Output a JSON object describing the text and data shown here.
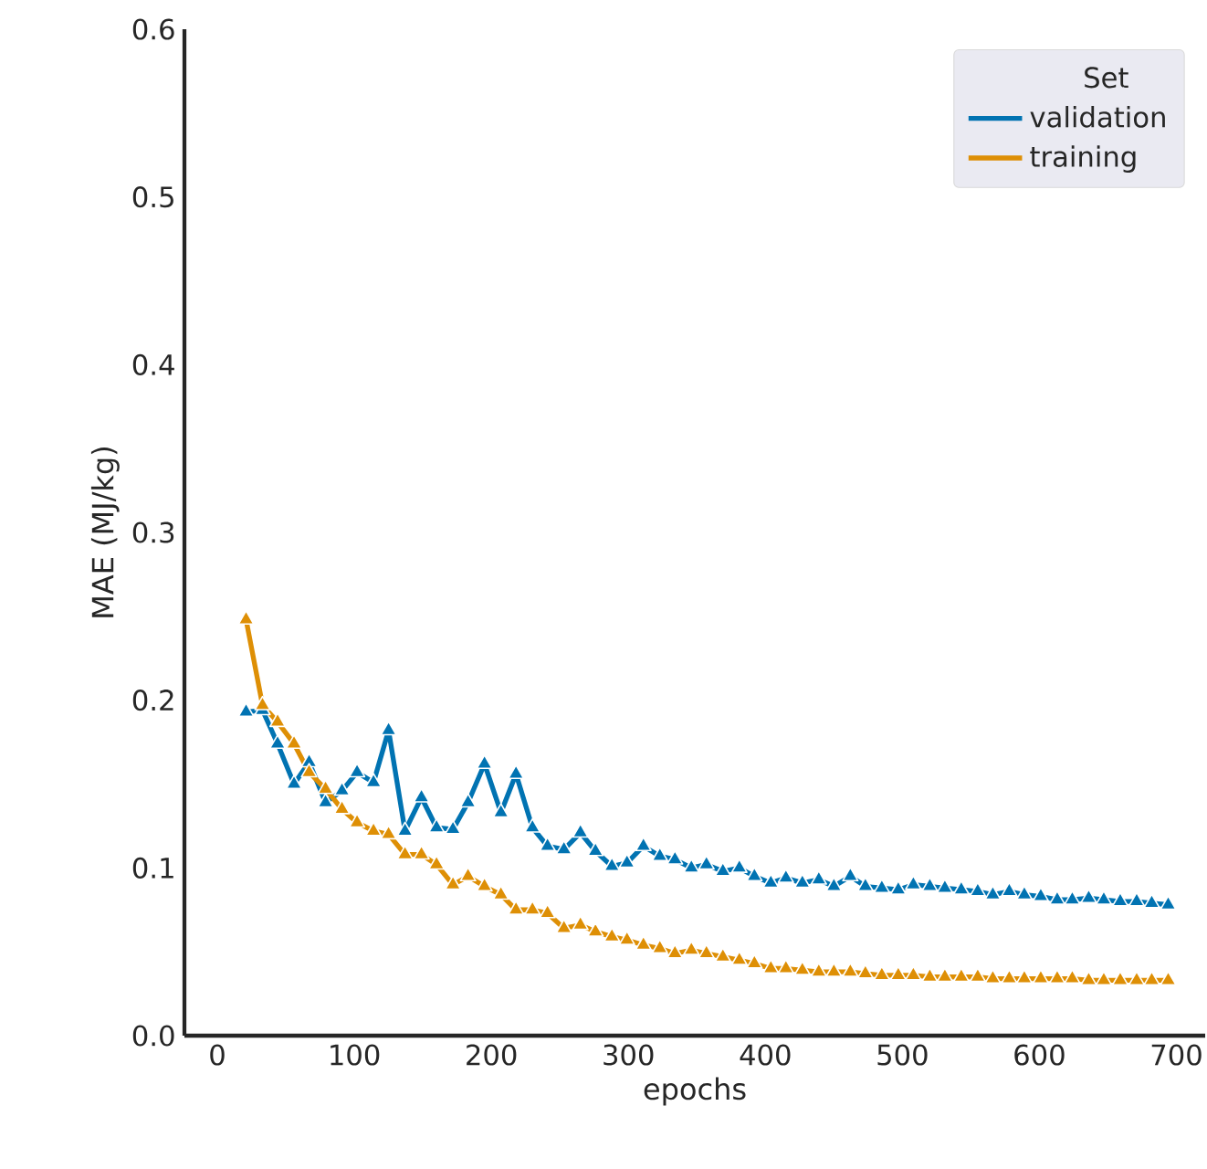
{
  "chart_data": {
    "type": "line",
    "xlabel": "epochs",
    "ylabel": "MAE (MJ/kg)",
    "legend_title": "Set",
    "legend": "top right",
    "marker": "triangle",
    "grid": false,
    "x": [
      21,
      33,
      44,
      56,
      67,
      79,
      91,
      102,
      114,
      125,
      137,
      149,
      160,
      172,
      183,
      195,
      207,
      218,
      230,
      241,
      253,
      265,
      276,
      288,
      299,
      311,
      323,
      334,
      346,
      357,
      369,
      381,
      392,
      404,
      415,
      427,
      439,
      450,
      462,
      473,
      485,
      497,
      508,
      520,
      531,
      543,
      555,
      566,
      578,
      589,
      601,
      613,
      624,
      636,
      647,
      659,
      671,
      682,
      694
    ],
    "series": [
      {
        "name": "validation",
        "color": "#0173b2",
        "values": [
          0.193,
          0.194,
          0.174,
          0.15,
          0.163,
          0.139,
          0.146,
          0.157,
          0.151,
          0.182,
          0.122,
          0.142,
          0.124,
          0.123,
          0.139,
          0.162,
          0.133,
          0.156,
          0.124,
          0.113,
          0.111,
          0.121,
          0.11,
          0.101,
          0.103,
          0.113,
          0.107,
          0.105,
          0.1,
          0.102,
          0.098,
          0.1,
          0.095,
          0.091,
          0.094,
          0.091,
          0.093,
          0.089,
          0.095,
          0.089,
          0.088,
          0.087,
          0.09,
          0.089,
          0.088,
          0.087,
          0.086,
          0.084,
          0.086,
          0.084,
          0.083,
          0.081,
          0.081,
          0.082,
          0.081,
          0.08,
          0.08,
          0.079,
          0.078
        ]
      },
      {
        "name": "training",
        "color": "#de8f05",
        "values": [
          0.248,
          0.197,
          0.187,
          0.174,
          0.157,
          0.147,
          0.135,
          0.127,
          0.122,
          0.12,
          0.108,
          0.108,
          0.102,
          0.09,
          0.095,
          0.089,
          0.084,
          0.075,
          0.075,
          0.073,
          0.064,
          0.066,
          0.062,
          0.059,
          0.057,
          0.054,
          0.052,
          0.049,
          0.051,
          0.049,
          0.047,
          0.045,
          0.043,
          0.04,
          0.04,
          0.039,
          0.038,
          0.038,
          0.038,
          0.037,
          0.036,
          0.036,
          0.036,
          0.035,
          0.035,
          0.035,
          0.035,
          0.034,
          0.034,
          0.034,
          0.034,
          0.034,
          0.034,
          0.033,
          0.033,
          0.033,
          0.033,
          0.033,
          0.033
        ]
      }
    ],
    "xlim": [
      -24,
      721
    ],
    "ylim": [
      0,
      0.6
    ],
    "xticks": [
      0,
      100,
      200,
      300,
      400,
      500,
      600,
      700
    ],
    "yticks": [
      {
        "value": 0,
        "label": "0.0"
      },
      0.1,
      0.2,
      0.3,
      0.4,
      0.5,
      0.6
    ]
  }
}
